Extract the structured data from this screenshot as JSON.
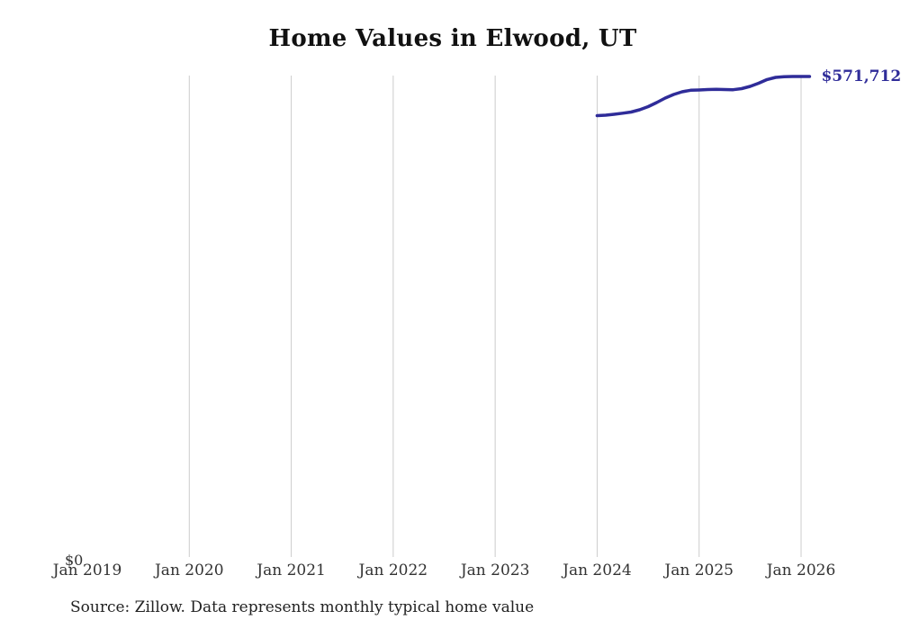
{
  "chart": {
    "title": "Home Values in Elwood, UT",
    "y_zero_label": "$0",
    "end_label": "$571,712",
    "source": "Source: Zillow. Data represents monthly typical home value",
    "accent_color": "#2f2c99",
    "gridline_color": "#cccccc",
    "tick_color": "#333333"
  },
  "chart_data": {
    "type": "line",
    "title": "Home Values in Elwood, UT",
    "xlabel": "",
    "ylabel": "",
    "ylim": [
      0,
      571712
    ],
    "x_start": "2019-01",
    "x_end": "2026-02",
    "x_tick_labels": [
      "Jan 2019",
      "Jan 2020",
      "Jan 2021",
      "Jan 2022",
      "Jan 2023",
      "Jan 2024",
      "Jan 2025",
      "Jan 2026"
    ],
    "gridlines": "vertical-at-each-january-2020-2026",
    "legend": "none",
    "y_axis_labels_visible": [
      "$0"
    ],
    "end_point_label": "$571,712",
    "series": [
      {
        "name": "Typical home value",
        "x": [
          "2024-01",
          "2024-02",
          "2024-03",
          "2024-04",
          "2024-05",
          "2024-06",
          "2024-07",
          "2024-08",
          "2024-09",
          "2024-10",
          "2024-11",
          "2024-12",
          "2025-01",
          "2025-02",
          "2025-03",
          "2025-04",
          "2025-05",
          "2025-06",
          "2025-07",
          "2025-08",
          "2025-09",
          "2025-10",
          "2025-11",
          "2025-12",
          "2026-01",
          "2026-02"
        ],
        "values": [
          524800,
          525300,
          526400,
          527700,
          529100,
          531800,
          535600,
          540400,
          545800,
          550100,
          553400,
          555200,
          555500,
          556100,
          556300,
          556100,
          555900,
          557200,
          559900,
          563600,
          568000,
          570600,
          571500,
          571700,
          571712,
          571712
        ]
      }
    ]
  }
}
